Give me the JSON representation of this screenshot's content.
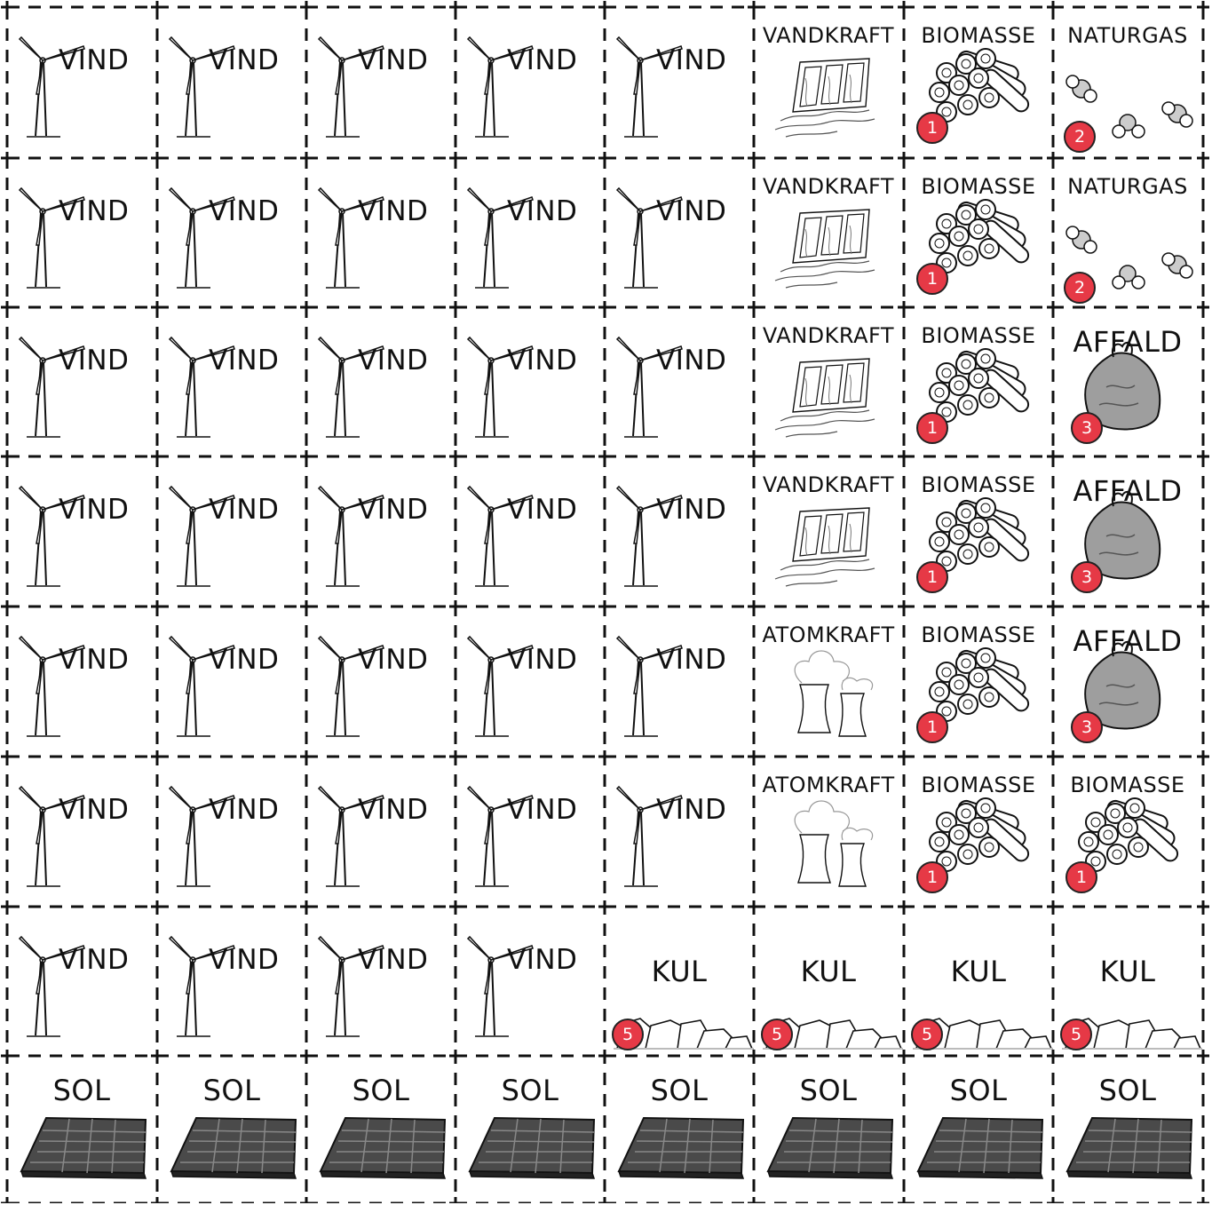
{
  "colors": {
    "badge": "#e63946",
    "panel": "#4a4a4a",
    "bag": "#9e9e9e",
    "line": "#111111"
  },
  "labels": {
    "wind": "VIND",
    "hydro": "VANDKRAFT",
    "biomass": "BIOMASSE",
    "gas": "NATURGAS",
    "waste": "AFFALD",
    "nuclear": "ATOMKRAFT",
    "coal": "KUL",
    "solar": "SOL"
  },
  "badges": {
    "biomass": "1",
    "gas": "2",
    "waste": "3",
    "coal": "5"
  },
  "grid": [
    [
      "wind",
      "wind",
      "wind",
      "wind",
      "wind",
      "hydro",
      "biomass",
      "gas"
    ],
    [
      "wind",
      "wind",
      "wind",
      "wind",
      "wind",
      "hydro",
      "biomass",
      "gas"
    ],
    [
      "wind",
      "wind",
      "wind",
      "wind",
      "wind",
      "hydro",
      "biomass",
      "waste"
    ],
    [
      "wind",
      "wind",
      "wind",
      "wind",
      "wind",
      "hydro",
      "biomass",
      "waste"
    ],
    [
      "wind",
      "wind",
      "wind",
      "wind",
      "wind",
      "nuclear",
      "biomass",
      "waste"
    ],
    [
      "wind",
      "wind",
      "wind",
      "wind",
      "wind",
      "nuclear",
      "biomass",
      "biomass"
    ],
    [
      "wind",
      "wind",
      "wind",
      "wind",
      "coal",
      "coal",
      "coal",
      "coal"
    ],
    [
      "solar",
      "solar",
      "solar",
      "solar",
      "solar",
      "solar",
      "solar",
      "solar"
    ]
  ],
  "icons": {
    "wind": "wind-turbine-icon",
    "hydro": "dam-icon",
    "biomass": "log-pile-icon",
    "gas": "gas-molecule-icon",
    "waste": "trash-bag-icon",
    "nuclear": "cooling-tower-icon",
    "coal": "coal-lumps-icon",
    "solar": "solar-panel-icon"
  }
}
